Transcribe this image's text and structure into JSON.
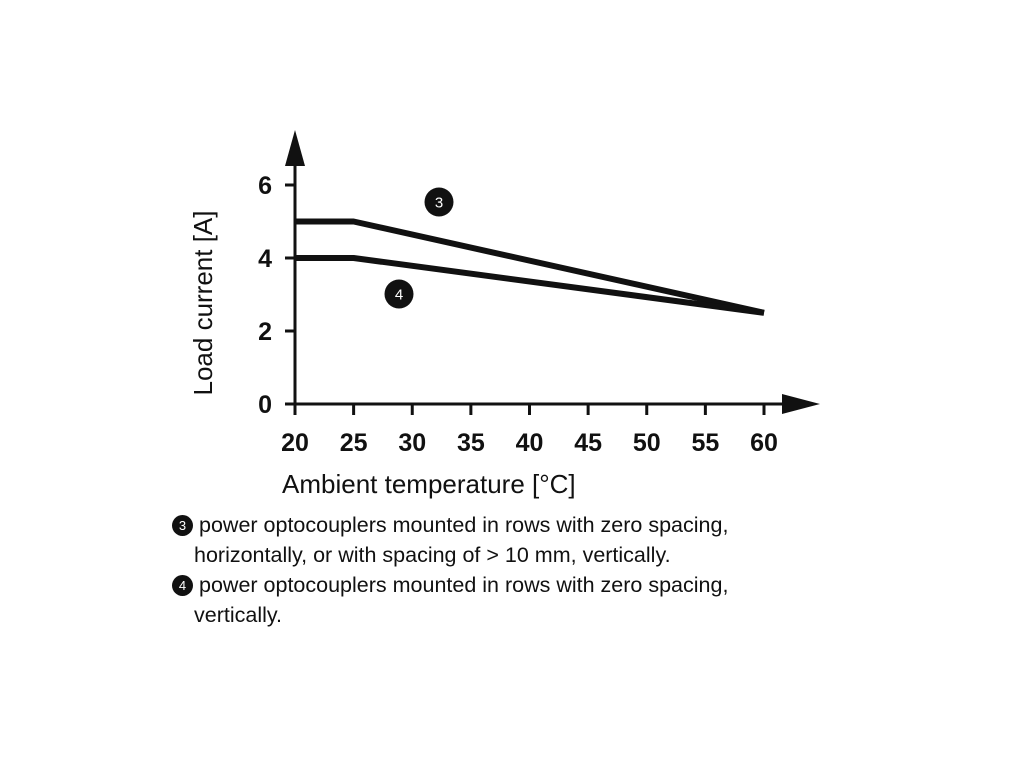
{
  "chart_data": {
    "type": "line",
    "xlabel": "Ambient temperature [°C]",
    "ylabel": "Load current [A]",
    "x_ticks": [
      "20",
      "25",
      "30",
      "35",
      "40",
      "45",
      "50",
      "55",
      "60"
    ],
    "y_ticks": [
      "0",
      "2",
      "4",
      "6"
    ],
    "xlim": [
      20,
      60
    ],
    "ylim": [
      0,
      6
    ],
    "grid": false,
    "series": [
      {
        "name": "3",
        "x": [
          20,
          25,
          60
        ],
        "y": [
          5,
          5,
          2.5
        ]
      },
      {
        "name": "4",
        "x": [
          20,
          25,
          60
        ],
        "y": [
          4,
          4,
          2.5
        ]
      }
    ]
  },
  "notes": [
    {
      "marker": "3",
      "line1": "power optocouplers mounted in rows with zero spacing,",
      "line2": "horizontally, or with spacing of > 10 mm, vertically."
    },
    {
      "marker": "4",
      "line1": "power optocouplers mounted in rows with zero spacing,",
      "line2": "vertically."
    }
  ]
}
